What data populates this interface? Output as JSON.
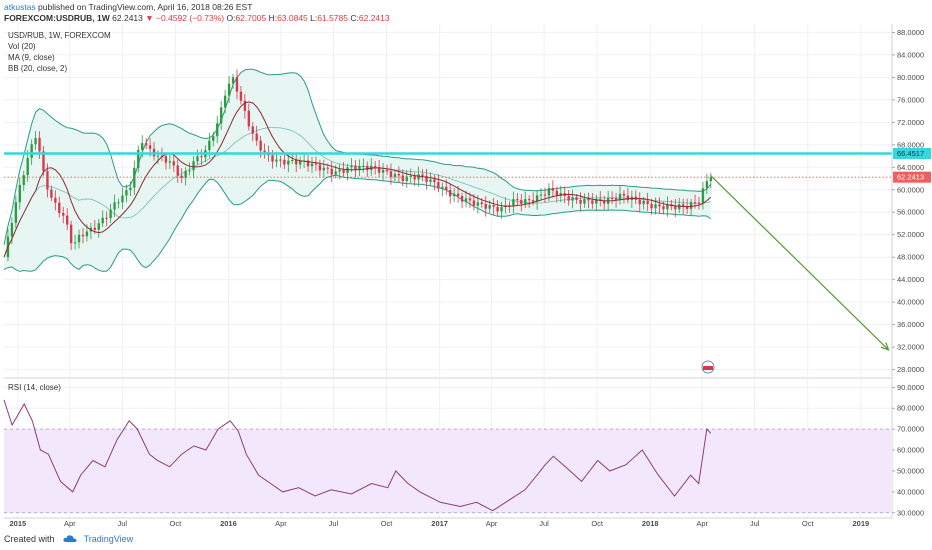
{
  "header": {
    "user": "atkustas",
    "published": "published on TradingView.com, April 16, 2018 08:26 EST",
    "symbol": "FOREXCOM:USDRUB, 1W",
    "last": "62.2413",
    "change": "▼ −0.4592 (−0.73%)",
    "ohlc": [
      {
        "k": "O:",
        "v": "62.7005"
      },
      {
        "k": "H:",
        "v": "63.0845"
      },
      {
        "k": "L:",
        "v": "61.5785"
      },
      {
        "k": "C:",
        "v": "62.2413"
      }
    ]
  },
  "indicators": [
    "USD/RUB, 1W, FOREXCOM",
    "Vol (20)",
    "MA (9, close)",
    "BB (20, close, 2)"
  ],
  "rsi_label": "RSI (14, close)",
  "footer": {
    "created": "Created with",
    "brand": "TradingView",
    "brand_icon": "tradingview-cloud-icon"
  },
  "colors": {
    "up": "#2e9b42",
    "down": "#d9374b",
    "bb": "#2a9a8a",
    "bb_fill": "#e7f5f3",
    "ma": "#8b2b30",
    "hline": "#35d6e0",
    "last_line": "#e35b5b",
    "arrow": "#5b9a2e",
    "rsi": "#8b3c7a",
    "rsi_band": "#f3e8fb"
  },
  "chart_data": [
    {
      "type": "candlestick",
      "title": "USD/RUB, 1W, FOREXCOM",
      "x_tick_labels": [
        "2015",
        "Apr",
        "Jul",
        "Oct",
        "2016",
        "Apr",
        "Jul",
        "Oct",
        "2017",
        "Apr",
        "Jul",
        "Oct",
        "2018",
        "Apr",
        "Jul",
        "Oct",
        "2019"
      ],
      "x_range": [
        "2014-12-08",
        "2019-02-24"
      ],
      "y_tick_labels": [
        "88.0000",
        "84.0000",
        "80.0000",
        "76.0000",
        "72.0000",
        "68.0000",
        "64.0000",
        "60.0000",
        "56.0000",
        "52.0000",
        "48.0000",
        "44.0000",
        "40.0000",
        "36.0000",
        "32.0000",
        "28.0000"
      ],
      "ylim": [
        26.5,
        89.5
      ],
      "close_series": {
        "x": [
          "2014-12-08",
          "2014-12-29",
          "2015-01-19",
          "2015-02-02",
          "2015-02-16",
          "2015-03-02",
          "2015-03-23",
          "2015-04-06",
          "2015-04-20",
          "2015-05-11",
          "2015-06-01",
          "2015-06-22",
          "2015-07-13",
          "2015-08-03",
          "2015-08-17",
          "2015-08-31",
          "2015-09-21",
          "2015-10-12",
          "2015-11-02",
          "2015-11-23",
          "2015-12-14",
          "2015-12-28",
          "2016-01-11",
          "2016-01-18",
          "2016-02-01",
          "2016-02-15",
          "2016-03-07",
          "2016-03-28",
          "2016-04-18",
          "2016-05-09",
          "2016-06-06",
          "2016-07-04",
          "2016-08-01",
          "2016-09-05",
          "2016-10-03",
          "2016-10-31",
          "2016-11-28",
          "2016-12-26",
          "2017-01-16",
          "2017-02-06",
          "2017-03-06",
          "2017-03-27",
          "2017-04-17",
          "2017-05-08",
          "2017-06-05",
          "2017-06-26",
          "2017-07-10",
          "2017-07-31",
          "2017-08-28",
          "2017-09-18",
          "2017-10-16",
          "2017-11-13",
          "2017-12-11",
          "2018-01-08",
          "2018-02-05",
          "2018-03-05",
          "2018-03-26",
          "2018-04-09",
          "2018-04-16"
        ],
        "y": [
          48,
          58,
          66,
          70,
          62,
          58,
          55,
          50,
          52,
          53,
          55,
          58,
          60,
          69,
          67,
          66,
          65,
          62,
          65,
          67,
          72,
          78,
          80,
          77,
          73,
          69,
          66,
          65,
          65,
          65,
          64,
          63,
          64,
          64,
          63,
          62,
          62.5,
          61,
          59.5,
          58.5,
          57.5,
          57,
          56.5,
          58,
          58,
          59,
          60,
          59,
          58,
          58,
          58,
          59,
          58,
          57,
          57,
          57,
          58,
          61.5,
          62.2413
        ]
      },
      "reference_lines": [
        {
          "value": "66.4517",
          "style": "horizontal-line"
        },
        {
          "value": "62.2413",
          "style": "last-price-dotted"
        }
      ],
      "annotations": [
        {
          "type": "arrow",
          "from": [
            "2018-04-16",
            62.5
          ],
          "to": [
            "2019-02-18",
            31.5
          ]
        }
      ],
      "overlays": [
        "MA (9, close)",
        "BB (20, close, 2)"
      ]
    },
    {
      "type": "line",
      "title": "RSI (14, close)",
      "y_tick_labels": [
        "90.0000",
        "80.0000",
        "70.0000",
        "60.0000",
        "50.0000",
        "40.0000",
        "30.0000"
      ],
      "ylim": [
        27.5,
        93.5
      ],
      "band": [
        30,
        70
      ],
      "series": [
        {
          "x": [
            "2014-12-08",
            "2014-12-22",
            "2015-01-12",
            "2015-01-26",
            "2015-02-09",
            "2015-02-23",
            "2015-03-16",
            "2015-04-06",
            "2015-04-20",
            "2015-05-11",
            "2015-06-01",
            "2015-06-22",
            "2015-07-13",
            "2015-07-27",
            "2015-08-17",
            "2015-08-31",
            "2015-09-21",
            "2015-10-12",
            "2015-11-02",
            "2015-11-23",
            "2015-12-14",
            "2016-01-04",
            "2016-01-18",
            "2016-02-01",
            "2016-02-22",
            "2016-03-14",
            "2016-04-04",
            "2016-05-02",
            "2016-05-30",
            "2016-06-27",
            "2016-08-01",
            "2016-09-05",
            "2016-10-03",
            "2016-10-17",
            "2016-11-07",
            "2016-11-28",
            "2017-01-02",
            "2017-02-06",
            "2017-03-06",
            "2017-04-03",
            "2017-05-01",
            "2017-05-29",
            "2017-06-19",
            "2017-07-03",
            "2017-07-17",
            "2017-08-07",
            "2017-09-04",
            "2017-10-02",
            "2017-10-23",
            "2017-11-20",
            "2017-12-18",
            "2018-01-15",
            "2018-02-12",
            "2018-03-12",
            "2018-03-26",
            "2018-04-09",
            "2018-04-16"
          ],
          "y": [
            84,
            72,
            82,
            74,
            60,
            58,
            45,
            40,
            48,
            55,
            52,
            65,
            74,
            70,
            58,
            55,
            52,
            58,
            62,
            60,
            70,
            74,
            69,
            58,
            48,
            44,
            40,
            42,
            38,
            41,
            39,
            44,
            42,
            50,
            44,
            40,
            35,
            33,
            35,
            31,
            36,
            41,
            48,
            53,
            57,
            52,
            45,
            55,
            50,
            53,
            60,
            48,
            38,
            48,
            44,
            70,
            68
          ]
        }
      ]
    }
  ]
}
